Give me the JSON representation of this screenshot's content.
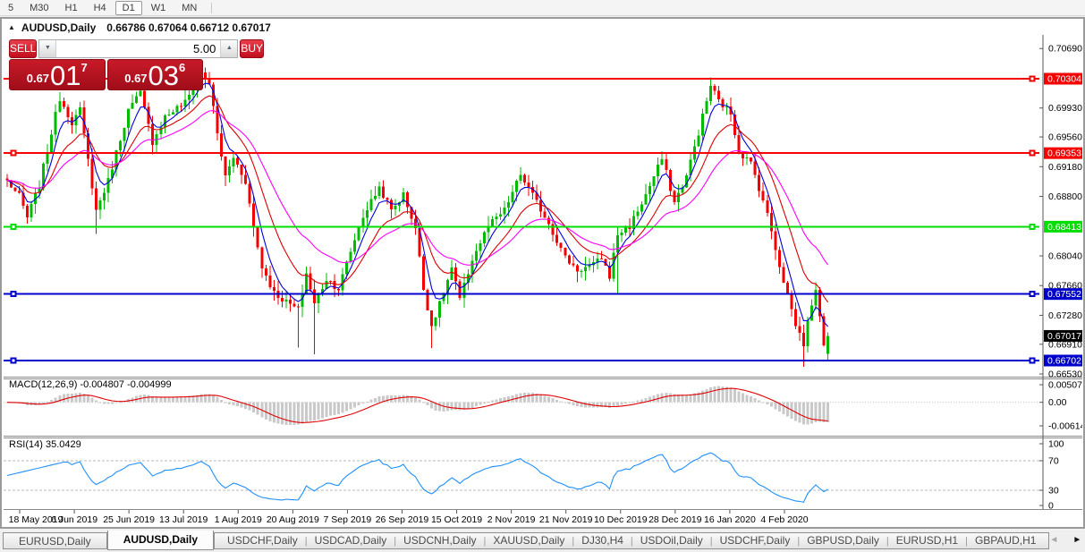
{
  "toolbar": {
    "timeframes": [
      "5",
      "M30",
      "H1",
      "H4",
      "D1",
      "W1",
      "MN"
    ],
    "active": "D1"
  },
  "icons": {
    "collapse": "▲",
    "volume_down": "▼",
    "volume_up": "▲",
    "tab_scroll_left": "◄",
    "tab_scroll_right": "►"
  },
  "chart": {
    "symbol": "AUDUSD,Daily",
    "ohlc_line": "0.66786 0.67064 0.66712 0.67017"
  },
  "trade_panel": {
    "sell_label": "SELL",
    "buy_label": "BUY",
    "volume": "5.00",
    "sell_price": {
      "prefix": "0.67",
      "big": "01",
      "sup": "7"
    },
    "buy_price": {
      "prefix": "0.67",
      "big": "03",
      "sup": "6"
    }
  },
  "indicators": {
    "macd_label": "MACD(12,26,9) -0.004807 -0.004999",
    "rsi_label": "RSI(14) 35.0429"
  },
  "tabs": {
    "items": [
      "EURUSD,Daily",
      "AUDUSD,Daily",
      "USDCHF,Daily",
      "USDCAD,Daily",
      "USDCNH,Daily",
      "XAUUSD,Daily",
      "DJ30,H4",
      "USDOil,Daily",
      "USDCHF,Daily",
      "GBPUSD,Daily",
      "EURUSD,H1",
      "GBPAUD,H1"
    ],
    "active": "AUDUSD,Daily"
  },
  "chart_data": {
    "type": "candlestick",
    "symbol": "AUDUSD",
    "timeframe": "Daily",
    "current_bar": {
      "open": 0.66786,
      "high": 0.67064,
      "low": 0.66712,
      "close": 0.67017
    },
    "bid": "0.67017",
    "ask": "0.67036",
    "x_ticks": [
      "18 May 2019",
      "6 Jun 2019",
      "25 Jun 2019",
      "13 Jul 2019",
      "1 Aug 2019",
      "20 Aug 2019",
      "7 Sep 2019",
      "26 Sep 2019",
      "15 Oct 2019",
      "2 Nov 2019",
      "21 Nov 2019",
      "10 Dec 2019",
      "28 Dec 2019",
      "16 Jan 2020",
      "4 Feb 2020"
    ],
    "y_ticks": [
      0.7069,
      0.6993,
      0.6956,
      0.6918,
      0.688,
      0.6804,
      0.6766,
      0.6728,
      0.6691,
      0.6653
    ],
    "hlines": [
      {
        "price": 0.70304,
        "color": "#f60000",
        "label": "0.70304"
      },
      {
        "price": 0.69353,
        "color": "#f60000",
        "label": "0.69353"
      },
      {
        "price": 0.68413,
        "color": "#00dd00",
        "label": "0.68413"
      },
      {
        "price": 0.67552,
        "color": "#0000cd",
        "label": "0.67552"
      },
      {
        "price": 0.66702,
        "color": "#0000cd",
        "label": "0.66702"
      }
    ],
    "current_price_tag": {
      "price": 0.67017,
      "label": "0.67017",
      "color": "#000000"
    },
    "candle_colors": {
      "up": "#00bb00",
      "down": "#f40000"
    },
    "ma_lines": [
      {
        "period": 5,
        "color": "#0000dd"
      },
      {
        "period": 13,
        "color": "#dd0000"
      },
      {
        "period": 26,
        "color": "#ff00ff"
      }
    ],
    "close_path": [
      [
        0,
        0.69
      ],
      [
        3,
        0.688
      ],
      [
        5,
        0.6853
      ],
      [
        8,
        0.6895
      ],
      [
        13,
        0.7006
      ],
      [
        16,
        0.6975
      ],
      [
        18,
        0.699
      ],
      [
        22,
        0.6862
      ],
      [
        25,
        0.69
      ],
      [
        30,
        0.699
      ],
      [
        33,
        0.7012
      ],
      [
        36,
        0.695
      ],
      [
        39,
        0.6982
      ],
      [
        44,
        0.7
      ],
      [
        48,
        0.7038
      ],
      [
        50,
        0.7025
      ],
      [
        52,
        0.696
      ],
      [
        54,
        0.6905
      ],
      [
        56,
        0.693
      ],
      [
        59,
        0.69
      ],
      [
        61,
        0.684
      ],
      [
        63,
        0.679
      ],
      [
        66,
        0.6757
      ],
      [
        69,
        0.6745
      ],
      [
        72,
        0.6735
      ],
      [
        74,
        0.6782
      ],
      [
        76,
        0.6742
      ],
      [
        79,
        0.6775
      ],
      [
        82,
        0.6762
      ],
      [
        85,
        0.681
      ],
      [
        88,
        0.6855
      ],
      [
        92,
        0.6892
      ],
      [
        95,
        0.6862
      ],
      [
        98,
        0.6882
      ],
      [
        101,
        0.684
      ],
      [
        103,
        0.6762
      ],
      [
        105,
        0.6715
      ],
      [
        107,
        0.6742
      ],
      [
        110,
        0.6788
      ],
      [
        112,
        0.6748
      ],
      [
        115,
        0.68
      ],
      [
        119,
        0.6842
      ],
      [
        123,
        0.6862
      ],
      [
        127,
        0.6908
      ],
      [
        131,
        0.6872
      ],
      [
        134,
        0.6846
      ],
      [
        138,
        0.6802
      ],
      [
        141,
        0.6786
      ],
      [
        145,
        0.6792
      ],
      [
        147,
        0.6802
      ],
      [
        149,
        0.6778
      ],
      [
        151,
        0.6832
      ],
      [
        154,
        0.6842
      ],
      [
        158,
        0.6882
      ],
      [
        162,
        0.6928
      ],
      [
        165,
        0.6872
      ],
      [
        168,
        0.6906
      ],
      [
        171,
        0.6962
      ],
      [
        174,
        0.7022
      ],
      [
        176,
        0.7002
      ],
      [
        179,
        0.6986
      ],
      [
        181,
        0.6938
      ],
      [
        184,
        0.6922
      ],
      [
        187,
        0.6876
      ],
      [
        189,
        0.6836
      ],
      [
        191,
        0.6792
      ],
      [
        193,
        0.6754
      ],
      [
        195,
        0.6716
      ],
      [
        197,
        0.6692
      ],
      [
        199,
        0.6744
      ],
      [
        200,
        0.6756
      ],
      [
        201,
        0.673
      ],
      [
        202,
        0.6692
      ],
      [
        203,
        0.67017
      ]
    ],
    "forced_wicks": [
      [
        5,
        "l",
        0.6845
      ],
      [
        13,
        "h",
        0.7013
      ],
      [
        22,
        "l",
        0.6832
      ],
      [
        33,
        "h",
        0.7022
      ],
      [
        48,
        "h",
        0.7048
      ],
      [
        54,
        "l",
        0.6893
      ],
      [
        63,
        "l",
        0.6776
      ],
      [
        72,
        "l",
        0.6687
      ],
      [
        76,
        "l",
        0.6678
      ],
      [
        92,
        "h",
        0.6899
      ],
      [
        105,
        "l",
        0.6686
      ],
      [
        127,
        "h",
        0.6917
      ],
      [
        141,
        "l",
        0.677
      ],
      [
        151,
        "l",
        0.6756
      ],
      [
        162,
        "h",
        0.6938
      ],
      [
        174,
        "h",
        0.7032
      ],
      [
        197,
        "l",
        0.6662
      ]
    ],
    "macd": {
      "params": "12,26,9",
      "main": -0.004807,
      "signal": -0.004999,
      "axis": [
        {
          "v": 0.005076,
          "label": "0.005076"
        },
        {
          "v": 0,
          "label": "0.00"
        },
        {
          "v": -0.006148,
          "label": "-0.006148"
        }
      ],
      "hist_color": "#c9c9c9",
      "signal_color": "#e00000"
    },
    "rsi": {
      "period": 14,
      "value": 35.0429,
      "levels": [
        70,
        30
      ],
      "axis": [
        100,
        70,
        30,
        0
      ],
      "color": "#1e90ff"
    }
  }
}
